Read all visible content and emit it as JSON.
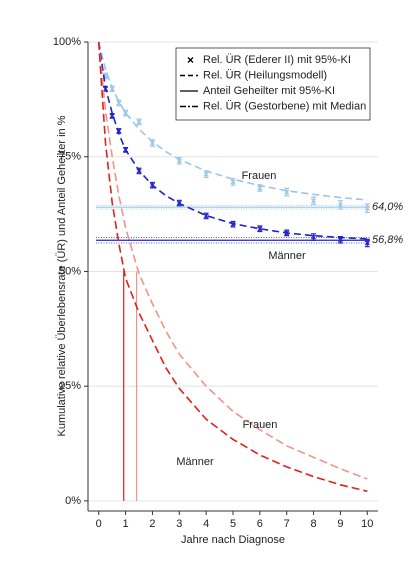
{
  "chart_data": {
    "type": "line",
    "x_label": "Jahre nach Diagnose",
    "y_label": "Kumulative relative Überlebensrate (ÜR) und Anteil Geheilter in %",
    "xlim": [
      -0.4,
      10.4
    ],
    "ylim": [
      -2.2,
      100
    ],
    "xticks": [
      0,
      1,
      2,
      3,
      4,
      5,
      6,
      7,
      8,
      9,
      10
    ],
    "yticks": [
      {
        "value": 0,
        "label": "0%"
      },
      {
        "value": 25,
        "label": "25%"
      },
      {
        "value": 50,
        "label": "50%"
      },
      {
        "value": 75,
        "label": "75%"
      },
      {
        "value": 100,
        "label": "100%"
      }
    ],
    "grid": true,
    "legend": [
      "Rel. ÜR (Ederer II) mit 95%-KI",
      "Rel. ÜR (Heilungsmodell)",
      "Anteil Geheilter mit 95%-KI",
      "Rel. ÜR (Gestorbene) mit Median"
    ],
    "x": [
      0.25,
      0.5,
      0.75,
      1,
      1.5,
      2,
      3,
      4,
      5,
      6,
      7,
      8,
      9,
      10
    ],
    "model_x": [
      0,
      0.25,
      0.5,
      0.75,
      1,
      1.5,
      2,
      2.5,
      3,
      4,
      5,
      6,
      7,
      8,
      9,
      10
    ],
    "groups": [
      {
        "name": "Frauen",
        "color": "#9cc6e6",
        "observed": [
          92.6,
          89.8,
          86.7,
          84.5,
          82.6,
          78,
          74.1,
          71.2,
          69.5,
          68.2,
          67.3,
          65.4,
          64.5,
          63.8
        ],
        "errors": [
          0.6,
          0.6,
          0.6,
          0.6,
          0.6,
          0.7,
          0.7,
          0.7,
          0.7,
          0.7,
          0.8,
          0.8,
          0.9,
          0.9
        ],
        "model": [
          100,
          94,
          90,
          87,
          84.6,
          81,
          78.3,
          76.1,
          74.4,
          71.9,
          70.1,
          68.7,
          67.6,
          66.8,
          66.1,
          65.6
        ],
        "cured": 64.0,
        "cured_label": "64,0%",
        "cured_ci": [
          63.6,
          64.4
        ]
      },
      {
        "name": "Männer",
        "color": "#2323c8",
        "observed": [
          89.8,
          83.9,
          80.6,
          76.5,
          71.9,
          68.8,
          64.9,
          62.1,
          60.3,
          59.3,
          58.4,
          57.5,
          56.9,
          56.2
        ],
        "errors": [
          0.5,
          0.5,
          0.5,
          0.5,
          0.6,
          0.6,
          0.6,
          0.6,
          0.6,
          0.6,
          0.6,
          0.7,
          0.7,
          0.8
        ],
        "model": [
          100,
          90,
          84.5,
          80,
          76.5,
          72,
          68.8,
          66.5,
          64.8,
          62.2,
          60.4,
          59.3,
          58.4,
          57.8,
          57.4,
          57.1
        ],
        "cured": 56.8,
        "cured_label": "56,8%",
        "cured_ci": [
          56.2,
          57.4
        ]
      }
    ],
    "deceased": [
      {
        "name": "Frauen",
        "color": "#f0948a",
        "values": [
          100,
          85,
          75,
          66.5,
          59.5,
          49.5,
          43,
          37,
          32,
          25,
          19.5,
          15.5,
          12,
          9.5,
          7,
          4.8
        ],
        "median": 1.41
      },
      {
        "name": "Männer",
        "color": "#e0201a",
        "values": [
          100,
          78,
          65,
          56,
          48.5,
          41,
          35,
          29,
          24.5,
          17.8,
          13.4,
          10,
          7.4,
          5.3,
          3.5,
          2.1
        ],
        "median": 0.93
      }
    ]
  }
}
